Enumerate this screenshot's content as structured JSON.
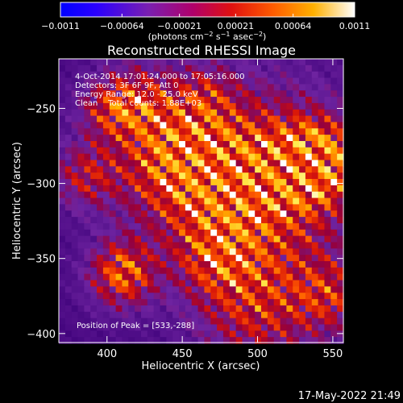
{
  "chart_data": {
    "type": "heatmap",
    "title": "Reconstructed RHESSI Image",
    "xlabel": "Heliocentric X (arcsec)",
    "ylabel": "Heliocentric Y (arcsec)",
    "xlim": [
      368,
      557
    ],
    "ylim": [
      -406,
      -217
    ],
    "x_ticks": [
      400,
      450,
      500,
      550
    ],
    "y_ticks": [
      -250,
      -300,
      -350,
      -400
    ],
    "colorbar": {
      "ticks": [
        -0.0011,
        -0.00064,
        -0.00021,
        0.00021,
        0.00064,
        0.0011
      ],
      "tick_labels": [
        "-0.0011",
        "-0.00064",
        "-0.00021",
        "0.00021",
        "0.00064",
        "0.0011"
      ],
      "unit_label": "(photons cm-2 s-1 asec-2)",
      "range": [
        -0.0011,
        0.0011
      ]
    },
    "annotations": [
      "4-Oct-2014 17:01:24.000 to 17:05:16.000",
      "Detectors: 3F 6F 9F, Att 0",
      "Energy Range: 12.0 - 25.0 keV",
      "Clean    Total counts: 1.88E+03",
      "Position of Peak = [533,-288]"
    ],
    "peak": {
      "x": 533,
      "y": -288
    },
    "timestamp": "17-May-2022 21:49"
  }
}
